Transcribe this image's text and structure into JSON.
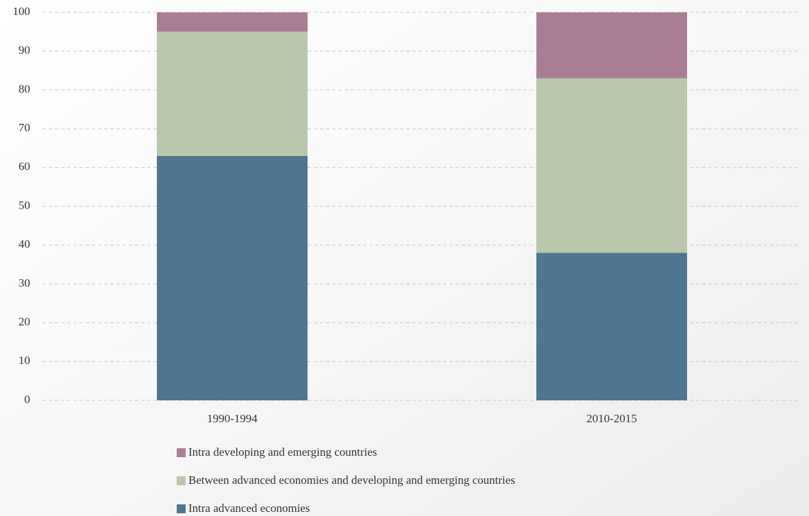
{
  "chart_data": {
    "type": "stacked_bar",
    "categories": [
      "1990-1994",
      "2010-2015"
    ],
    "series": [
      {
        "name": "Intra advanced economies",
        "color": "#4e7591",
        "values": [
          63,
          38
        ]
      },
      {
        "name": "Between advanced economies and developing and emerging countries",
        "color": "#b9c7ab",
        "values": [
          32,
          45
        ]
      },
      {
        "name": "Intra developing and emerging countries",
        "color": "#ab7d95",
        "values": [
          5,
          17
        ]
      }
    ],
    "ylim": [
      0,
      100
    ],
    "yticks": [
      0,
      10,
      20,
      30,
      40,
      50,
      60,
      70,
      80,
      90,
      100
    ],
    "grid": true
  }
}
